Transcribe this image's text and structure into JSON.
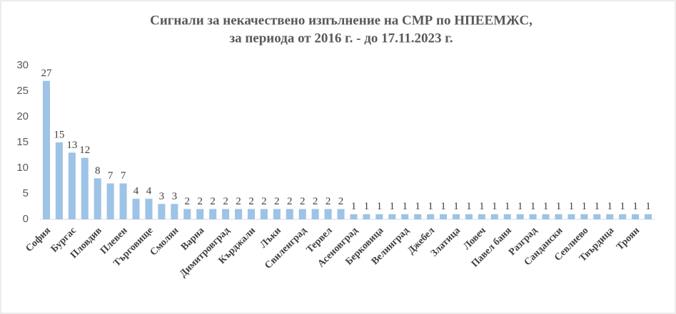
{
  "chart_data": {
    "type": "bar",
    "title": [
      "Сигнали за некачествено изпълнение на СМР по НПЕЕМЖС,",
      "за периода от 2016 г. - до 17.11.2023 г."
    ],
    "categories": [
      "София",
      null,
      "Бургас",
      null,
      "Пловдив",
      null,
      "Плевен",
      null,
      "Търговище",
      null,
      "Смолян",
      null,
      "Варна",
      null,
      "Димитровград",
      null,
      "Кърджали",
      null,
      "Лъки",
      null,
      "Свиленград",
      null,
      "Тервел",
      null,
      "Асеновград",
      null,
      "Берковица",
      null,
      "Велинград",
      null,
      "Джебел",
      null,
      "Златица",
      null,
      "Ловеч",
      null,
      "Павел баня",
      null,
      "Разград",
      null,
      "Сандански",
      null,
      "Севлиево",
      null,
      "Твърдица",
      null,
      "Троян",
      null
    ],
    "values": [
      27,
      15,
      13,
      12,
      8,
      7,
      7,
      4,
      4,
      3,
      3,
      2,
      2,
      2,
      2,
      2,
      2,
      2,
      2,
      2,
      2,
      2,
      2,
      2,
      1,
      1,
      1,
      1,
      1,
      1,
      1,
      1,
      1,
      1,
      1,
      1,
      1,
      1,
      1,
      1,
      1,
      1,
      1,
      1,
      1,
      1,
      1,
      1
    ],
    "color": "#9dc3e6",
    "ylim": [
      0,
      30
    ],
    "yticks": [
      0,
      5,
      10,
      15,
      20,
      25,
      30
    ],
    "grid": false
  }
}
